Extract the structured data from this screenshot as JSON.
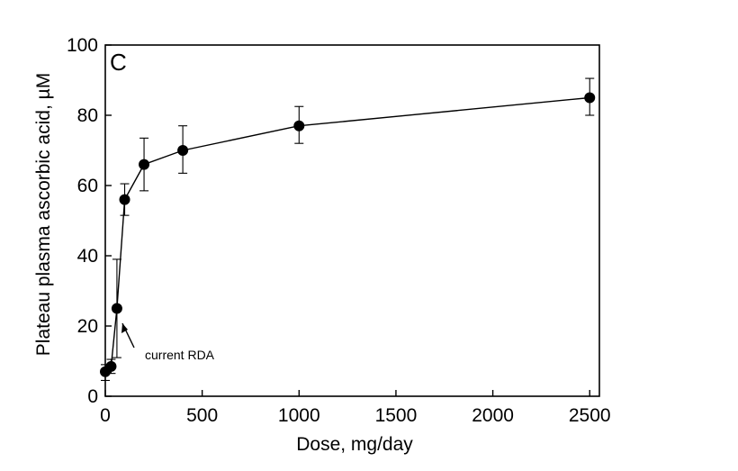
{
  "chart_data": {
    "type": "scatter",
    "panel_label": "C",
    "xlabel": "Dose, mg/day",
    "ylabel": "Plateau plasma ascorbic acid, µM",
    "xlim": [
      0,
      2550
    ],
    "ylim": [
      0,
      100
    ],
    "x_ticks": [
      0,
      500,
      1000,
      1500,
      2000,
      2500
    ],
    "y_ticks": [
      0,
      20,
      40,
      60,
      80,
      100
    ],
    "grid": false,
    "connected": true,
    "series": [
      {
        "x": [
          0,
          30,
          60,
          100,
          200,
          400,
          1000,
          2500
        ],
        "y": [
          7,
          8.5,
          25,
          56,
          66,
          70,
          77,
          85
        ],
        "err_low": [
          2.5,
          2,
          14,
          4.5,
          7.5,
          6.5,
          5,
          5
        ],
        "err_high": [
          2,
          2,
          14,
          4.5,
          7.5,
          7,
          5.5,
          5.5
        ]
      }
    ],
    "annotations": [
      {
        "text": "current RDA",
        "x": 60,
        "y": 25
      }
    ]
  }
}
